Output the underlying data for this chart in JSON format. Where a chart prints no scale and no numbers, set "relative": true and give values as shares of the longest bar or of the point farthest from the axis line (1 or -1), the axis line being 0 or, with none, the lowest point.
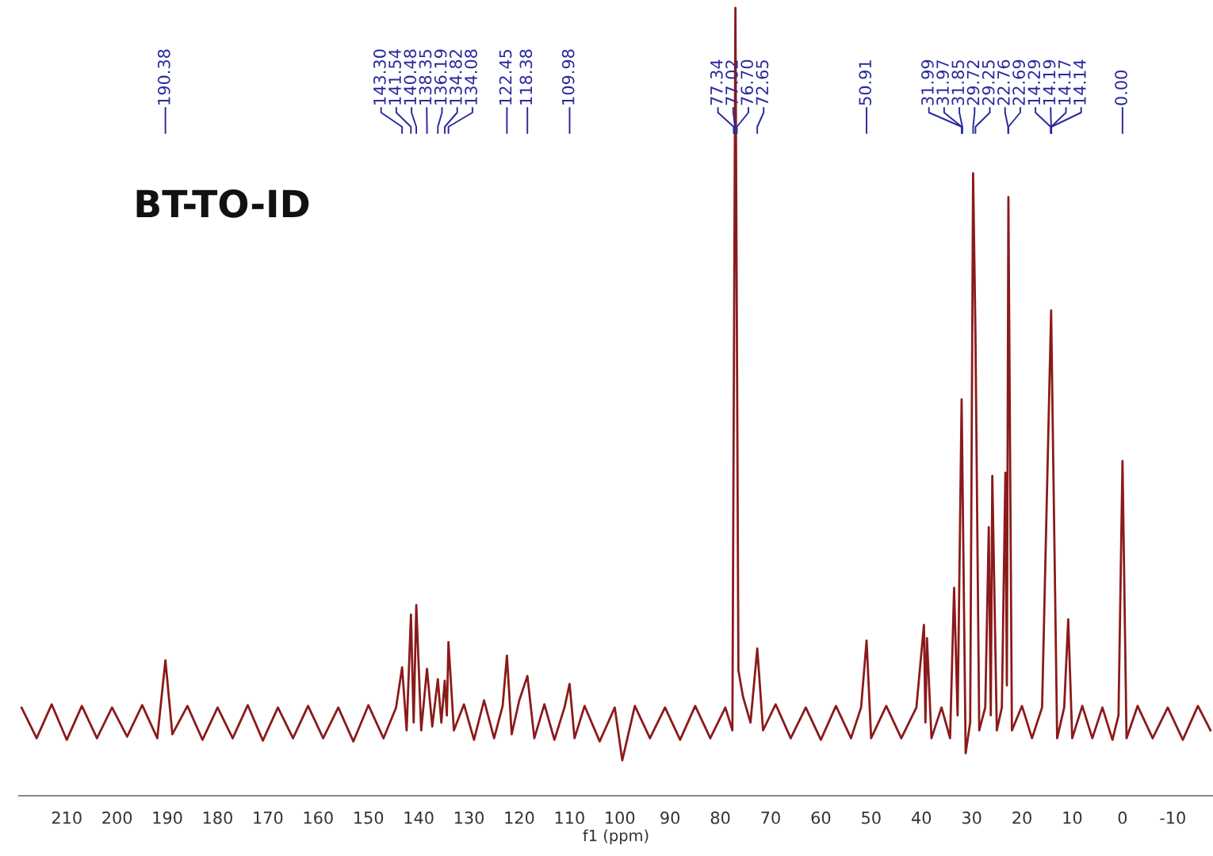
{
  "chart_data": {
    "type": "line",
    "title": "BT-TO-ID",
    "xlabel": "f1 (ppm)",
    "relative": true,
    "xlim": [
      219.5,
      -18
    ],
    "xticks": [
      210,
      200,
      190,
      180,
      170,
      160,
      150,
      140,
      130,
      120,
      110,
      100,
      90,
      80,
      70,
      60,
      50,
      40,
      30,
      20,
      10,
      0,
      -10
    ],
    "grid": false,
    "legend": false,
    "series": [
      {
        "color": "#8b1a1a",
        "x": [
          219,
          216,
          213,
          210,
          207,
          204,
          201,
          198,
          195,
          192,
          190.38,
          189,
          186,
          183,
          180,
          177,
          174,
          171,
          168,
          165,
          162,
          159,
          156,
          153,
          150,
          147,
          144.5,
          143.3,
          142.4,
          141.54,
          141.0,
          140.48,
          139.5,
          138.35,
          137.3,
          136.19,
          135.5,
          134.82,
          134.4,
          134.08,
          133,
          131,
          129,
          127,
          125,
          123.3,
          122.45,
          121.5,
          120,
          118.38,
          117,
          115,
          113,
          111,
          109.98,
          109,
          107,
          104,
          101,
          99.5,
          97,
          94,
          91,
          88,
          85,
          82,
          79,
          77.6,
          77.0,
          76.4,
          75.5,
          74,
          72.65,
          71.5,
          69,
          66,
          63,
          60,
          57,
          54,
          52,
          50.91,
          50,
          47,
          44,
          41,
          39.5,
          39.2,
          38.9,
          38,
          36,
          34.3,
          33.5,
          32.8,
          32.0,
          31.2,
          30.3,
          29.72,
          29.25,
          28.5,
          27.3,
          26.6,
          26.2,
          25.9,
          25,
          24,
          23.3,
          23.0,
          22.7,
          22,
          20,
          18,
          16,
          14.2,
          13,
          11.6,
          10.8,
          10,
          8,
          6,
          4,
          2,
          0.8,
          0.0,
          -0.8,
          -3,
          -6,
          -9,
          -12,
          -15,
          -17.5
        ],
        "values": [
          0.112,
          0.073,
          0.116,
          0.071,
          0.114,
          0.073,
          0.112,
          0.075,
          0.115,
          0.073,
          0.172,
          0.078,
          0.114,
          0.071,
          0.112,
          0.073,
          0.115,
          0.07,
          0.112,
          0.073,
          0.114,
          0.073,
          0.112,
          0.069,
          0.115,
          0.073,
          0.112,
          0.163,
          0.083,
          0.23,
          0.093,
          0.242,
          0.083,
          0.161,
          0.088,
          0.148,
          0.093,
          0.146,
          0.102,
          0.195,
          0.083,
          0.116,
          0.071,
          0.121,
          0.073,
          0.114,
          0.178,
          0.078,
          0.121,
          0.152,
          0.073,
          0.116,
          0.071,
          0.112,
          0.142,
          0.073,
          0.114,
          0.069,
          0.112,
          0.045,
          0.114,
          0.073,
          0.112,
          0.071,
          0.114,
          0.073,
          0.112,
          0.083,
          1.0,
          0.159,
          0.126,
          0.093,
          0.187,
          0.083,
          0.116,
          0.073,
          0.112,
          0.071,
          0.114,
          0.073,
          0.112,
          0.197,
          0.073,
          0.114,
          0.073,
          0.112,
          0.217,
          0.093,
          0.2,
          0.073,
          0.112,
          0.073,
          0.264,
          0.102,
          0.503,
          0.054,
          0.093,
          0.79,
          0.586,
          0.083,
          0.112,
          0.341,
          0.102,
          0.406,
          0.083,
          0.112,
          0.41,
          0.14,
          0.76,
          0.083,
          0.114,
          0.073,
          0.112,
          0.616,
          0.073,
          0.112,
          0.224,
          0.073,
          0.114,
          0.073,
          0.112,
          0.071,
          0.102,
          0.425,
          0.073,
          0.114,
          0.073,
          0.112,
          0.071,
          0.114,
          0.083
        ]
      }
    ],
    "annotations": [
      {
        "text": "190.38",
        "x": 190.38
      },
      {
        "text": "143.30",
        "x": 143.3
      },
      {
        "text": "141.54",
        "x": 141.54
      },
      {
        "text": "140.48",
        "x": 140.48
      },
      {
        "text": "138.35",
        "x": 138.35
      },
      {
        "text": "136.19",
        "x": 136.19
      },
      {
        "text": "134.82",
        "x": 134.82
      },
      {
        "text": "134.08",
        "x": 134.08
      },
      {
        "text": "122.45",
        "x": 122.45
      },
      {
        "text": "118.38",
        "x": 118.38
      },
      {
        "text": "109.98",
        "x": 109.98
      },
      {
        "text": "77.34",
        "x": 77.34
      },
      {
        "text": "77.02",
        "x": 77.02
      },
      {
        "text": "76.70",
        "x": 76.7
      },
      {
        "text": "72.65",
        "x": 72.65
      },
      {
        "text": "50.91",
        "x": 50.91
      },
      {
        "text": "31.99",
        "x": 31.99
      },
      {
        "text": "31.97",
        "x": 31.97
      },
      {
        "text": "31.85",
        "x": 31.85
      },
      {
        "text": "29.72",
        "x": 29.72
      },
      {
        "text": "29.25",
        "x": 29.25
      },
      {
        "text": "22.76",
        "x": 22.76
      },
      {
        "text": "22.69",
        "x": 22.69
      },
      {
        "text": "14.29",
        "x": 14.29
      },
      {
        "text": "14.19",
        "x": 14.19
      },
      {
        "text": "14.17",
        "x": 14.17
      },
      {
        "text": "14.14",
        "x": 14.14
      },
      {
        "text": "0.00",
        "x": 0.0
      }
    ]
  }
}
